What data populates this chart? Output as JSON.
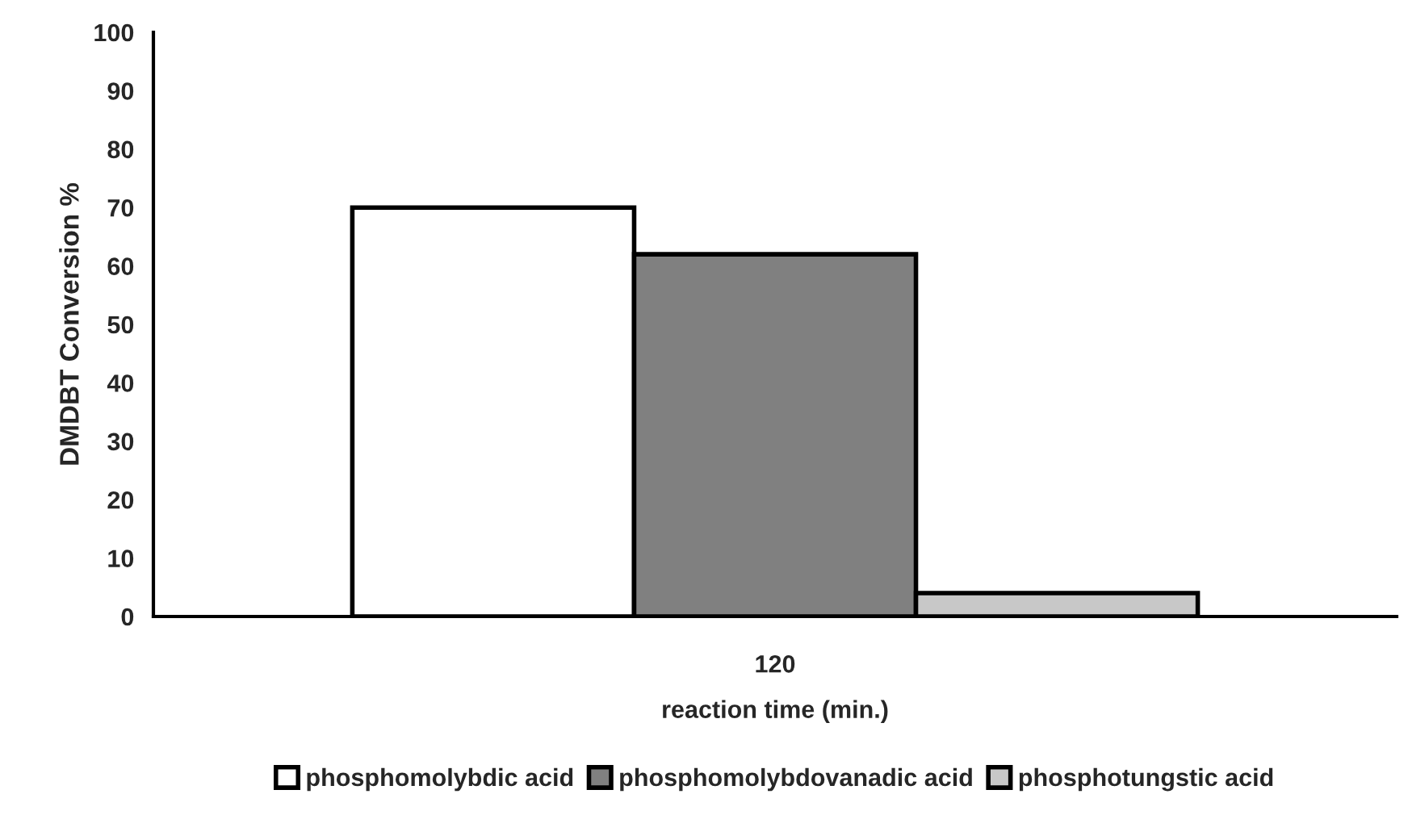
{
  "chart_data": {
    "type": "bar",
    "xlabel": "reaction time (min.)",
    "ylabel": "DMDBT Conversion %",
    "categories": [
      "120"
    ],
    "series": [
      {
        "name": "phosphomolybdic acid",
        "color": "#ffffff",
        "values": [
          70
        ]
      },
      {
        "name": "phosphomolybdovanadic acid",
        "color": "#808080",
        "values": [
          62
        ]
      },
      {
        "name": "phosphotungstic acid",
        "color": "#c8c8c8",
        "values": [
          4
        ]
      }
    ],
    "ylim": [
      0,
      100
    ],
    "yticks": [
      0,
      10,
      20,
      30,
      40,
      50,
      60,
      70,
      80,
      90,
      100
    ],
    "legend": "bottom"
  }
}
